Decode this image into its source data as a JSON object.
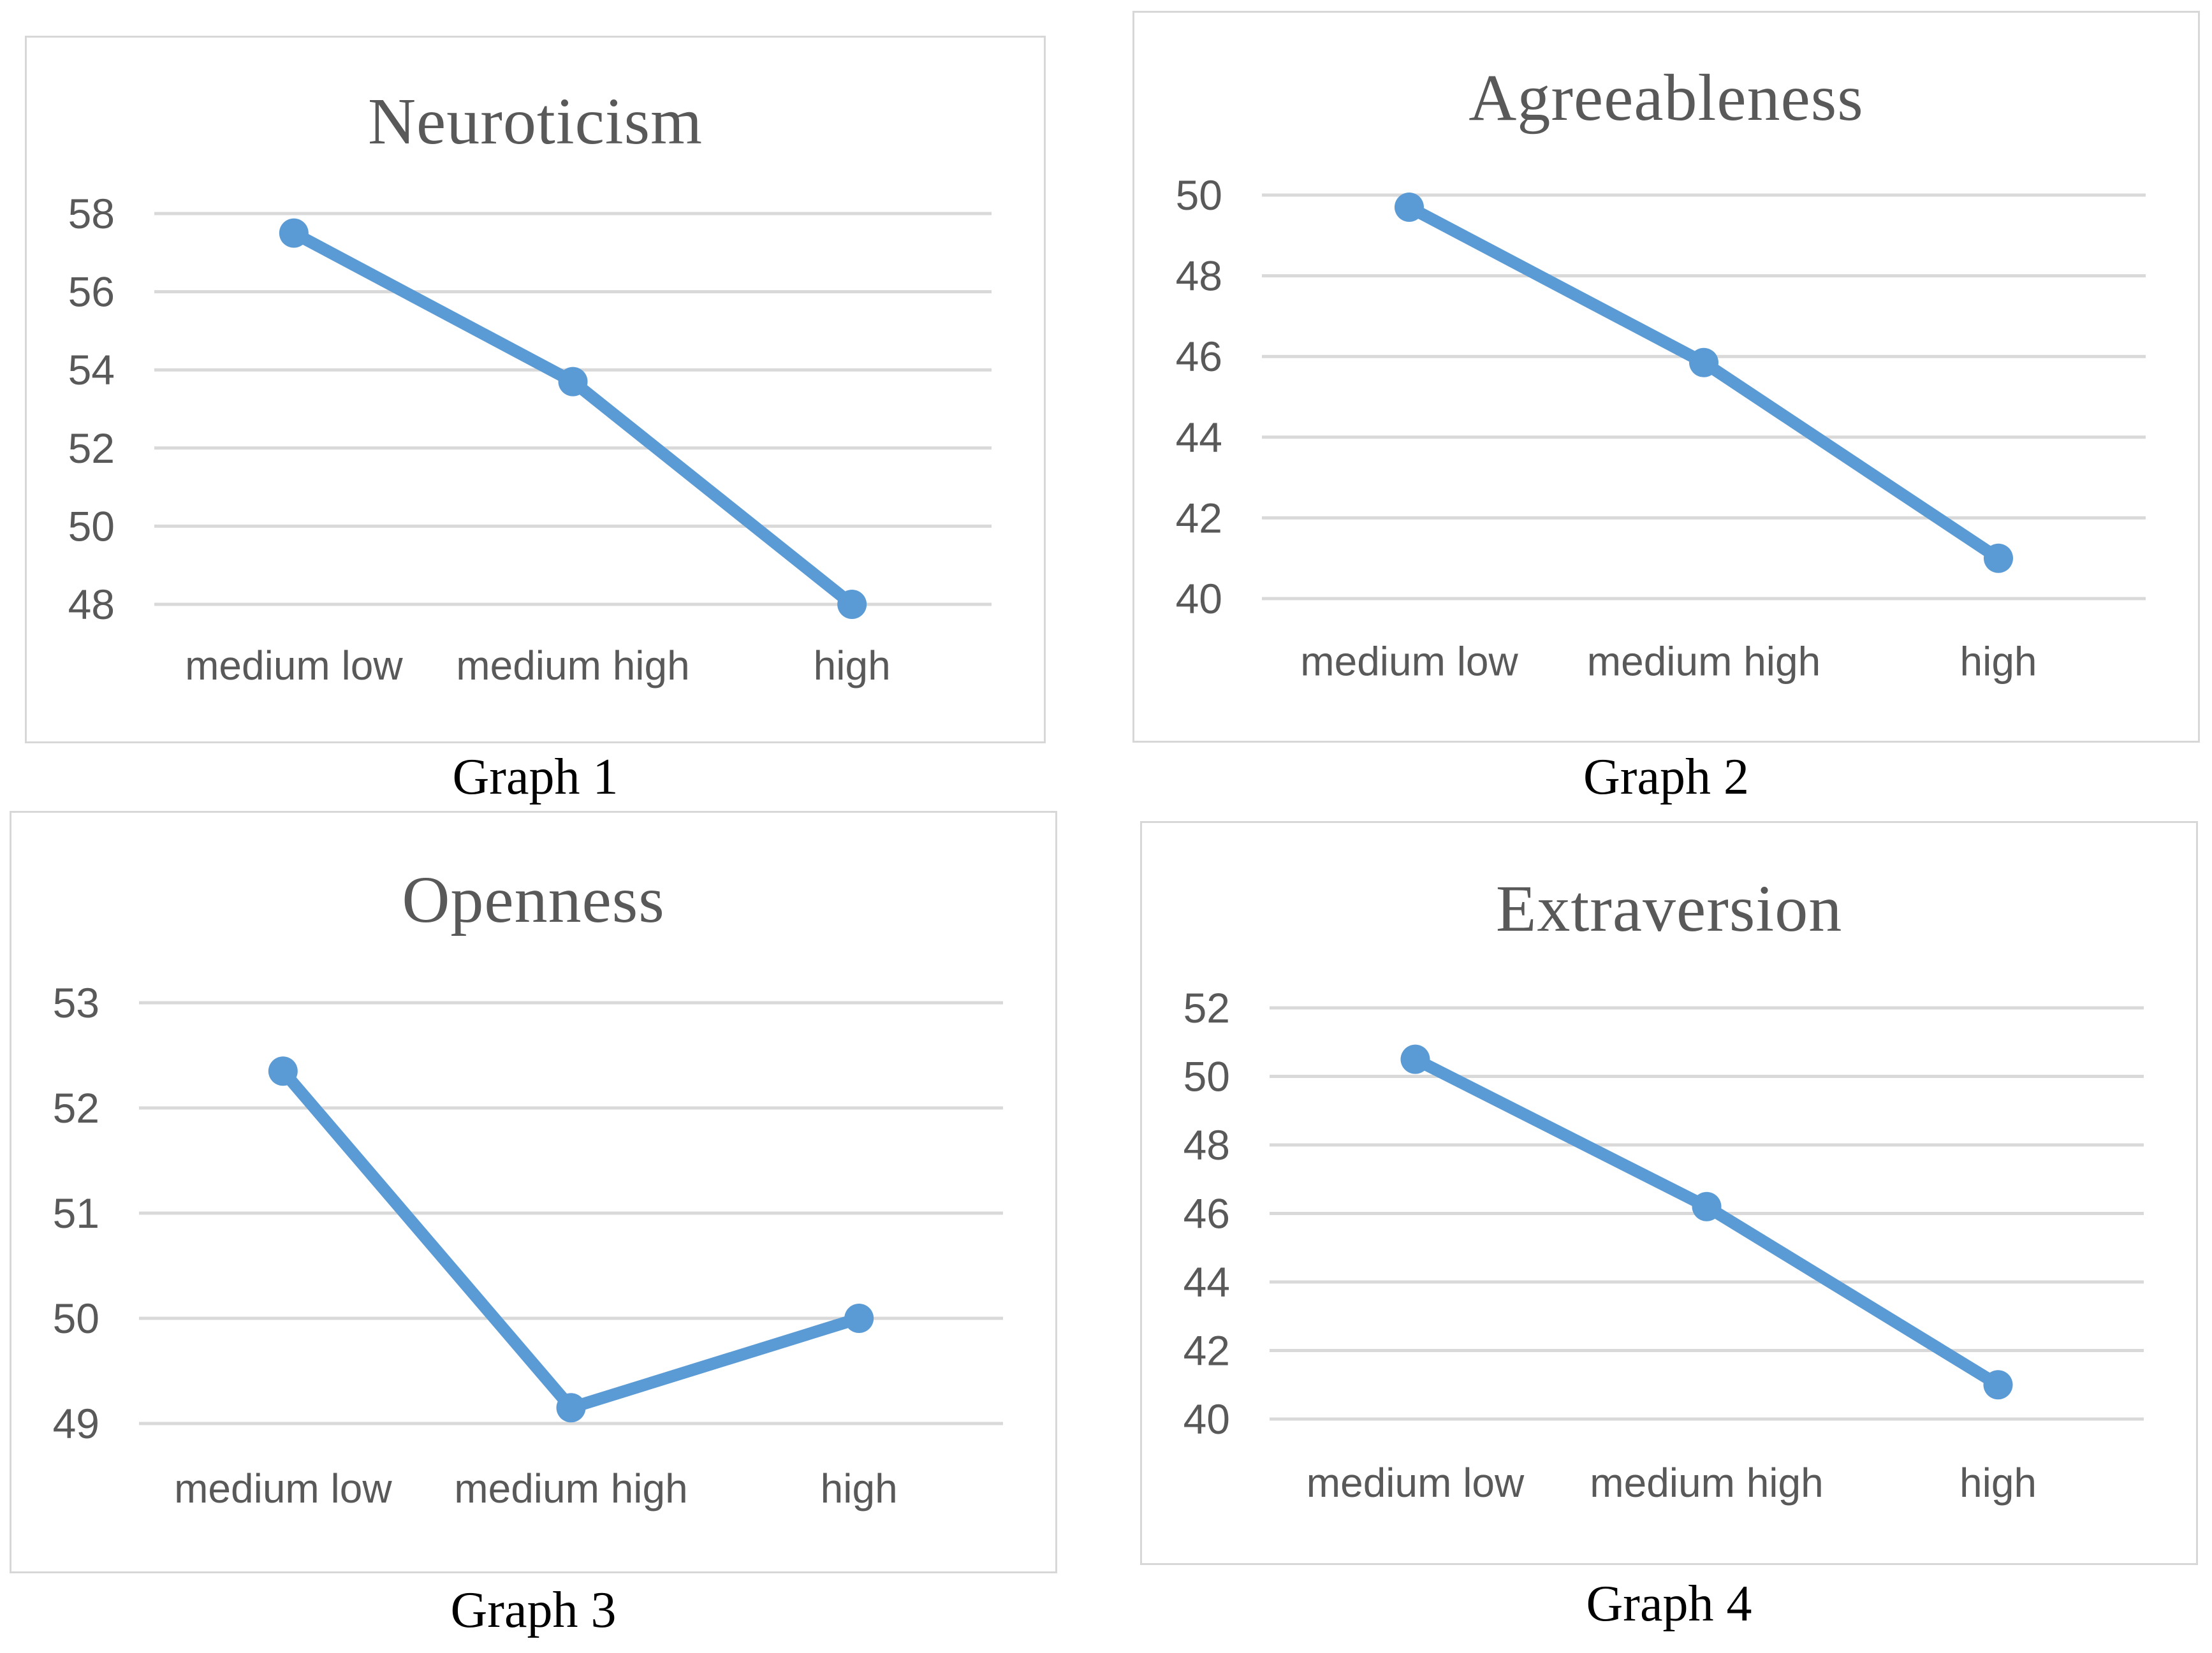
{
  "colors": {
    "line": "#5B9BD5",
    "marker": "#5B9BD5",
    "grid": "#D9D9D9",
    "panel_border": "#D7D7D7",
    "axis_text": "#595959",
    "title_text": "#595959",
    "caption_text": "#000000"
  },
  "chart_data": [
    {
      "type": "line",
      "title": "Neuroticism",
      "caption": "Graph 1",
      "categories": [
        "medium low",
        "medium high",
        "high"
      ],
      "values": [
        57.5,
        53.7,
        48.0
      ],
      "y_ticks": [
        58,
        56,
        54,
        52,
        50,
        48
      ],
      "ylim": [
        48,
        58
      ],
      "xlabel": "",
      "ylabel": "",
      "grid": true,
      "legend": "none"
    },
    {
      "type": "line",
      "title": "Agreeableness",
      "caption": "Graph 2",
      "categories": [
        "medium low",
        "medium high",
        "high"
      ],
      "values": [
        49.7,
        45.85,
        41.0
      ],
      "y_ticks": [
        50,
        48,
        46,
        44,
        42,
        40
      ],
      "ylim": [
        40,
        50
      ],
      "xlabel": "",
      "ylabel": "",
      "grid": true,
      "legend": "none"
    },
    {
      "type": "line",
      "title": "Openness",
      "caption": "Graph 3",
      "categories": [
        "medium low",
        "medium high",
        "high"
      ],
      "values": [
        52.35,
        49.15,
        50.0
      ],
      "y_ticks": [
        53,
        52,
        51,
        50,
        49
      ],
      "ylim": [
        49,
        53
      ],
      "xlabel": "",
      "ylabel": "",
      "grid": true,
      "legend": "none"
    },
    {
      "type": "line",
      "title": "Extraversion",
      "caption": "Graph 4",
      "categories": [
        "medium low",
        "medium high",
        "high"
      ],
      "values": [
        50.5,
        46.2,
        41.0
      ],
      "y_ticks": [
        52,
        50,
        48,
        46,
        44,
        42,
        40
      ],
      "ylim": [
        40,
        52
      ],
      "xlabel": "",
      "ylabel": "",
      "grid": true,
      "legend": "none"
    }
  ]
}
